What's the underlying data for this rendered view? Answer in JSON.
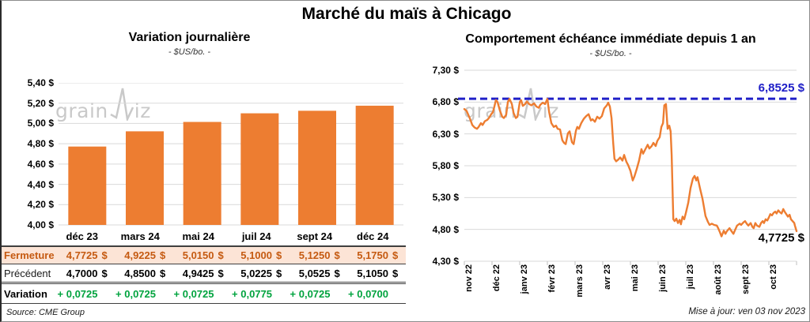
{
  "page": {
    "title": "Marché du maïs à Chicago",
    "source": "Source: CME Group",
    "updated": "Mise à jour: ven 03 nov 2023",
    "watermark": {
      "pre": "grain",
      "post": "iz"
    }
  },
  "colors": {
    "orange": "#ED7D31",
    "fermeture_text": "#C55A11",
    "fermeture_bg": "#FCE4D6",
    "variation_green": "#00A33E",
    "reference_blue": "#2020C8",
    "grid": "#D9D9D9",
    "axis": "#BFBFBF",
    "watermark_gray": "#C9C9C9"
  },
  "chart_data": [
    {
      "id": "daily-variation",
      "type": "bar",
      "title": "Variation journalière",
      "subtitle": "- $US/bo. -",
      "categories": [
        "déc 23",
        "mars 24",
        "mai 24",
        "juil 24",
        "sept 24",
        "déc 24"
      ],
      "values": [
        4.7725,
        4.9225,
        5.015,
        5.1,
        5.125,
        5.175
      ],
      "ylabel": "$US/bo.",
      "ylim": [
        4.0,
        5.4
      ],
      "ytick_step": 0.2,
      "ytick_labels": [
        "5,40 $",
        "5,20 $",
        "5,00 $",
        "4,80 $",
        "4,60 $",
        "4,40 $",
        "4,20 $",
        "4,00 $"
      ],
      "grid": true,
      "legend": "none"
    },
    {
      "id": "front-month-1y",
      "type": "line",
      "title": "Comportement échéance immédiate depuis 1 an",
      "subtitle": "- $US/bo. -",
      "x_labels": [
        "nov 22",
        "déc 22",
        "janv 23",
        "févr 23",
        "mars 23",
        "avr 23",
        "mai 23",
        "juin 23",
        "juil 23",
        "août 23",
        "sept 23",
        "oct 23"
      ],
      "ylim": [
        4.3,
        7.3
      ],
      "ytick_step": 0.5,
      "ytick_labels": [
        "7,30 $",
        "6,80 $",
        "6,30 $",
        "5,80 $",
        "5,30 $",
        "4,80 $",
        "4,30 $"
      ],
      "grid": true,
      "legend": "none",
      "reference_line": {
        "value": 6.8525,
        "label": "6,8525 $"
      },
      "end_label": {
        "value": 4.7725,
        "label": "4,7725 $"
      },
      "series": [
        {
          "name": "échéance immédiate",
          "points": [
            [
              0.0,
              6.69
            ],
            [
              0.007,
              6.66
            ],
            [
              0.017,
              6.54
            ],
            [
              0.024,
              6.44
            ],
            [
              0.031,
              6.4
            ],
            [
              0.038,
              6.38
            ],
            [
              0.043,
              6.41
            ],
            [
              0.05,
              6.47
            ],
            [
              0.055,
              6.44
            ],
            [
              0.062,
              6.5
            ],
            [
              0.069,
              6.52
            ],
            [
              0.074,
              6.55
            ],
            [
              0.081,
              6.61
            ],
            [
              0.086,
              6.64
            ],
            [
              0.09,
              6.72
            ],
            [
              0.095,
              6.83
            ],
            [
              0.1,
              6.8
            ],
            [
              0.107,
              6.67
            ],
            [
              0.114,
              6.57
            ],
            [
              0.119,
              6.55
            ],
            [
              0.126,
              6.6
            ],
            [
              0.131,
              6.8
            ],
            [
              0.136,
              6.85
            ],
            [
              0.143,
              6.77
            ],
            [
              0.148,
              6.63
            ],
            [
              0.155,
              6.55
            ],
            [
              0.16,
              6.57
            ],
            [
              0.167,
              6.8
            ],
            [
              0.171,
              6.83
            ],
            [
              0.176,
              6.74
            ],
            [
              0.183,
              6.77
            ],
            [
              0.188,
              6.81
            ],
            [
              0.195,
              6.77
            ],
            [
              0.202,
              6.75
            ],
            [
              0.21,
              6.78
            ],
            [
              0.217,
              6.73
            ],
            [
              0.224,
              6.71
            ],
            [
              0.229,
              6.76
            ],
            [
              0.236,
              6.79
            ],
            [
              0.243,
              6.77
            ],
            [
              0.25,
              6.85
            ],
            [
              0.255,
              6.65
            ],
            [
              0.262,
              6.47
            ],
            [
              0.269,
              6.41
            ],
            [
              0.276,
              6.43
            ],
            [
              0.281,
              6.38
            ],
            [
              0.288,
              6.37
            ],
            [
              0.295,
              6.2
            ],
            [
              0.3,
              6.16
            ],
            [
              0.305,
              6.14
            ],
            [
              0.312,
              6.31
            ],
            [
              0.317,
              6.34
            ],
            [
              0.324,
              6.17
            ],
            [
              0.329,
              6.14
            ],
            [
              0.336,
              6.35
            ],
            [
              0.34,
              6.41
            ],
            [
              0.345,
              6.38
            ],
            [
              0.352,
              6.47
            ],
            [
              0.36,
              6.54
            ],
            [
              0.367,
              6.58
            ],
            [
              0.374,
              6.61
            ],
            [
              0.381,
              6.51
            ],
            [
              0.386,
              6.53
            ],
            [
              0.393,
              6.49
            ],
            [
              0.4,
              6.57
            ],
            [
              0.407,
              6.54
            ],
            [
              0.414,
              6.58
            ],
            [
              0.421,
              6.7
            ],
            [
              0.429,
              6.75
            ],
            [
              0.433,
              6.79
            ],
            [
              0.438,
              6.73
            ],
            [
              0.443,
              6.55
            ],
            [
              0.448,
              6.16
            ],
            [
              0.452,
              5.91
            ],
            [
              0.457,
              5.87
            ],
            [
              0.464,
              5.9
            ],
            [
              0.469,
              5.93
            ],
            [
              0.476,
              5.88
            ],
            [
              0.481,
              5.97
            ],
            [
              0.488,
              5.86
            ],
            [
              0.493,
              5.81
            ],
            [
              0.5,
              5.72
            ],
            [
              0.507,
              5.57
            ],
            [
              0.512,
              5.63
            ],
            [
              0.519,
              5.75
            ],
            [
              0.526,
              5.88
            ],
            [
              0.533,
              6.06
            ],
            [
              0.538,
              5.99
            ],
            [
              0.545,
              6.06
            ],
            [
              0.552,
              6.13
            ],
            [
              0.557,
              6.07
            ],
            [
              0.564,
              6.11
            ],
            [
              0.569,
              6.16
            ],
            [
              0.576,
              6.11
            ],
            [
              0.581,
              6.19
            ],
            [
              0.588,
              6.25
            ],
            [
              0.593,
              6.41
            ],
            [
              0.598,
              6.47
            ],
            [
              0.602,
              6.75
            ],
            [
              0.607,
              6.77
            ],
            [
              0.612,
              6.38
            ],
            [
              0.617,
              6.43
            ],
            [
              0.621,
              6.34
            ],
            [
              0.624,
              5.97
            ],
            [
              0.629,
              4.96
            ],
            [
              0.633,
              4.93
            ],
            [
              0.638,
              4.97
            ],
            [
              0.643,
              4.9
            ],
            [
              0.648,
              4.95
            ],
            [
              0.652,
              4.88
            ],
            [
              0.657,
              5.0
            ],
            [
              0.662,
              4.96
            ],
            [
              0.667,
              5.06
            ],
            [
              0.674,
              5.22
            ],
            [
              0.681,
              5.45
            ],
            [
              0.688,
              5.6
            ],
            [
              0.693,
              5.64
            ],
            [
              0.698,
              5.57
            ],
            [
              0.702,
              5.62
            ],
            [
              0.71,
              5.43
            ],
            [
              0.717,
              5.28
            ],
            [
              0.721,
              5.16
            ],
            [
              0.726,
              5.01
            ],
            [
              0.733,
              4.92
            ],
            [
              0.738,
              4.87
            ],
            [
              0.745,
              4.89
            ],
            [
              0.752,
              4.87
            ],
            [
              0.76,
              4.86
            ],
            [
              0.764,
              4.82
            ],
            [
              0.769,
              4.76
            ],
            [
              0.774,
              4.69
            ],
            [
              0.781,
              4.78
            ],
            [
              0.786,
              4.73
            ],
            [
              0.79,
              4.77
            ],
            [
              0.798,
              4.82
            ],
            [
              0.802,
              4.79
            ],
            [
              0.81,
              4.73
            ],
            [
              0.814,
              4.78
            ],
            [
              0.821,
              4.86
            ],
            [
              0.829,
              4.89
            ],
            [
              0.833,
              4.87
            ],
            [
              0.84,
              4.91
            ],
            [
              0.845,
              4.93
            ],
            [
              0.85,
              4.89
            ],
            [
              0.855,
              4.86
            ],
            [
              0.862,
              4.9
            ],
            [
              0.867,
              4.84
            ],
            [
              0.871,
              4.82
            ],
            [
              0.876,
              4.9
            ],
            [
              0.881,
              4.86
            ],
            [
              0.888,
              4.84
            ],
            [
              0.893,
              4.9
            ],
            [
              0.898,
              4.93
            ],
            [
              0.902,
              4.9
            ],
            [
              0.907,
              4.96
            ],
            [
              0.912,
              4.94
            ],
            [
              0.917,
              4.99
            ],
            [
              0.921,
              5.04
            ],
            [
              0.926,
              5.02
            ],
            [
              0.931,
              5.06
            ],
            [
              0.936,
              5.08
            ],
            [
              0.94,
              5.05
            ],
            [
              0.945,
              5.1
            ],
            [
              0.95,
              5.07
            ],
            [
              0.955,
              5.05
            ],
            [
              0.96,
              5.12
            ],
            [
              0.964,
              5.08
            ],
            [
              0.969,
              5.04
            ],
            [
              0.974,
              5.0
            ],
            [
              0.979,
              5.03
            ],
            [
              0.983,
              4.96
            ],
            [
              0.988,
              4.93
            ],
            [
              0.993,
              4.9
            ],
            [
              0.995,
              4.86
            ],
            [
              1.0,
              4.7725
            ]
          ]
        }
      ]
    }
  ],
  "table": {
    "columns": [
      "déc 23",
      "mars 24",
      "mai 24",
      "juil 24",
      "sept 24",
      "déc 24"
    ],
    "rows": [
      {
        "label": "Fermeture",
        "style": "fermeture",
        "suffix": "$",
        "values": [
          "4,7725",
          "4,9225",
          "5,0150",
          "5,1000",
          "5,1250",
          "5,1750"
        ]
      },
      {
        "label": "Précédent",
        "style": "precedent",
        "suffix": "$",
        "values": [
          "4,7000",
          "4,8500",
          "4,9425",
          "5,0225",
          "5,0525",
          "5,1050"
        ]
      },
      {
        "label": "Variation",
        "style": "variation",
        "suffix": "",
        "values": [
          "+ 0,0725",
          "+ 0,0725",
          "+ 0,0725",
          "+ 0,0775",
          "+ 0,0725",
          "+ 0,0700"
        ]
      }
    ]
  }
}
